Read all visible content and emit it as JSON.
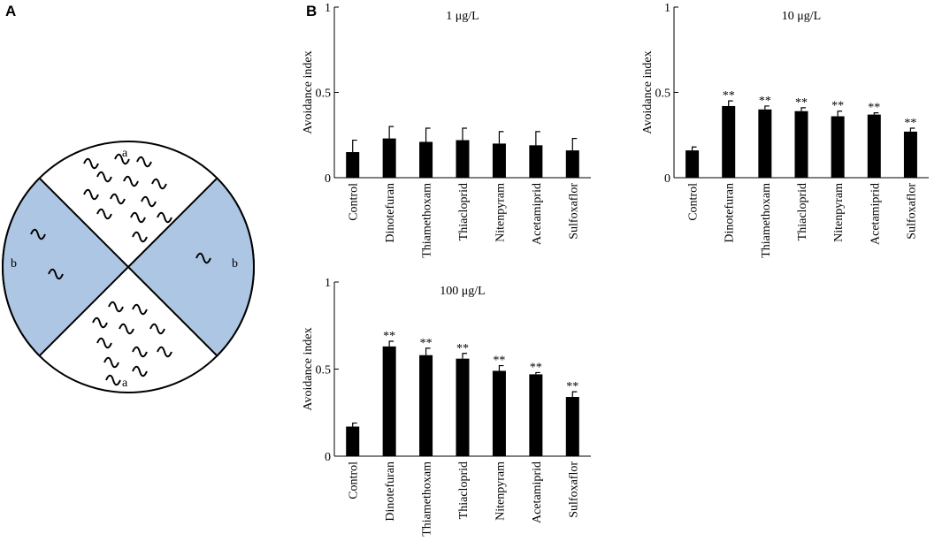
{
  "panel_labels": [
    "A",
    "B"
  ],
  "diagram": {
    "labels": [
      "a",
      "a",
      "b",
      "b"
    ]
  },
  "chart_data": [
    {
      "type": "bar",
      "title": "1 μg/L",
      "ylabel": "Avoidance index",
      "categories": [
        "Control",
        "Dinotefuran",
        "Thiamethoxam",
        "Thiacloprid",
        "Nitenpyram",
        "Acetamiprid",
        "Sulfoxaflor"
      ],
      "values": [
        0.15,
        0.23,
        0.21,
        0.22,
        0.2,
        0.19,
        0.16
      ],
      "errors": [
        0.07,
        0.07,
        0.08,
        0.07,
        0.07,
        0.08,
        0.07
      ],
      "color": "#000000",
      "ylim": [
        0,
        1
      ],
      "yticks": [
        0,
        0.5,
        1
      ]
    },
    {
      "type": "bar",
      "title": "10 μg/L",
      "ylabel": "Avoidance index",
      "categories": [
        "Control",
        "Dinotefuran",
        "Thiamethoxam",
        "Thiacloprid",
        "Nitenpyram",
        "Acetamiprid",
        "Sulfoxaflor"
      ],
      "values": [
        0.16,
        0.42,
        0.4,
        0.39,
        0.36,
        0.37,
        0.27
      ],
      "errors": [
        0.02,
        0.03,
        0.02,
        0.02,
        0.03,
        0.01,
        0.02
      ],
      "significance": [
        null,
        "**",
        "**",
        "**",
        "**",
        "**",
        "**"
      ],
      "color": "#000000",
      "ylim": [
        0,
        1
      ],
      "yticks": [
        0,
        0.5,
        1
      ]
    },
    {
      "type": "bar",
      "title": "100 μg/L",
      "ylabel": "Avoidance index",
      "categories": [
        "Control",
        "Dinotefuran",
        "Thiamethoxam",
        "Thiacloprid",
        "Nitenpyram",
        "Acetamiprid",
        "Sulfoxaflor"
      ],
      "values": [
        0.17,
        0.63,
        0.58,
        0.56,
        0.49,
        0.47,
        0.34
      ],
      "errors": [
        0.02,
        0.03,
        0.04,
        0.03,
        0.03,
        0.01,
        0.03
      ],
      "significance": [
        null,
        "**",
        "**",
        "**",
        "**",
        "**",
        "**"
      ],
      "color": "#000000",
      "ylim": [
        0,
        1
      ],
      "yticks": [
        0,
        0.5,
        1
      ]
    }
  ]
}
